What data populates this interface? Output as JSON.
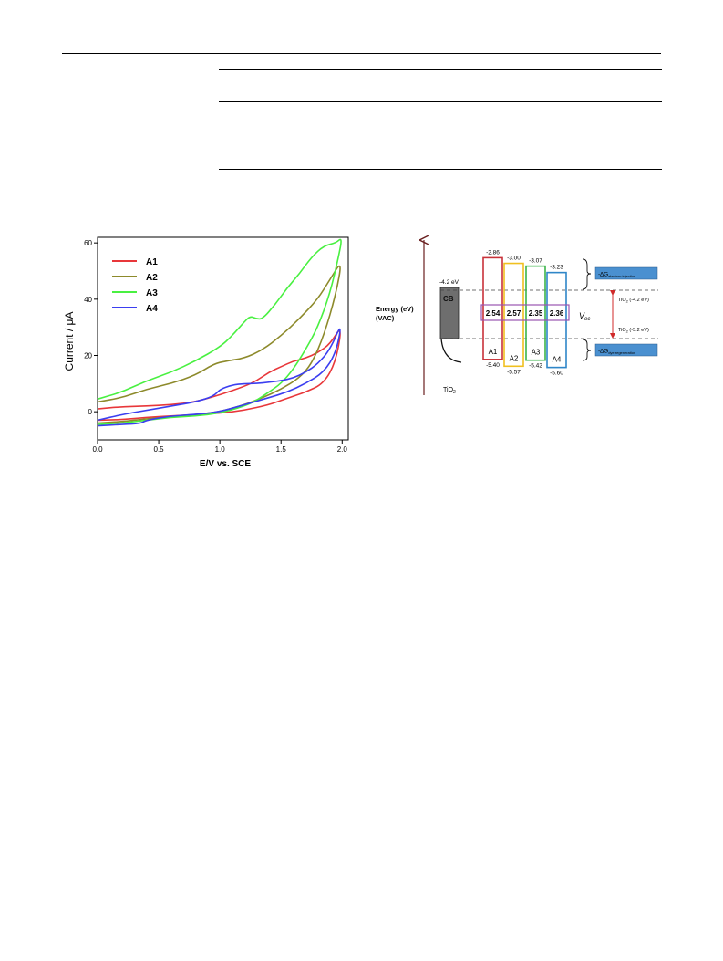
{
  "cv_plot": {
    "xlabel": "E/V vs. SCE",
    "ylabel": "Current / μA",
    "xticks": [
      "0.0",
      "0.5",
      "1.0",
      "1.5",
      "2.0"
    ],
    "yticks": [
      "0",
      "20",
      "40",
      "60"
    ],
    "legend": [
      "A1",
      "A2",
      "A3",
      "A4"
    ]
  },
  "chart_data": {
    "type": "line",
    "xlabel": "E/V vs. SCE",
    "ylabel": "Current / μA",
    "xlim": [
      0.0,
      2.05
    ],
    "ylim": [
      -10,
      62
    ],
    "legend_position": "top-left",
    "grid": false,
    "series": [
      {
        "name": "A1",
        "color": "#e8373a",
        "x": [
          0.0,
          0.2,
          0.4,
          0.6,
          0.8,
          1.0,
          1.2,
          1.3,
          1.4,
          1.5,
          1.6,
          1.7,
          1.8,
          1.9,
          2.0,
          1.95,
          1.85,
          1.7,
          1.6,
          1.5,
          1.4,
          1.2,
          1.0,
          0.8,
          0.6,
          0.4,
          0.2,
          0.0
        ],
        "y": [
          1,
          1.8,
          2,
          2.5,
          3.5,
          6,
          9,
          11,
          14,
          16,
          18,
          19,
          21,
          24,
          31,
          18,
          10,
          7,
          5.5,
          4,
          2.5,
          0.5,
          -0.5,
          -1,
          -1.5,
          -2,
          -2.8,
          -3
        ]
      },
      {
        "name": "A2",
        "color": "#8d8a2b",
        "x": [
          0.0,
          0.2,
          0.4,
          0.6,
          0.8,
          0.95,
          1.05,
          1.2,
          1.35,
          1.5,
          1.65,
          1.8,
          1.9,
          2.0,
          1.95,
          1.85,
          1.75,
          1.65,
          1.5,
          1.35,
          1.2,
          1.0,
          0.8,
          0.6,
          0.4,
          0.2,
          0.0
        ],
        "y": [
          3.5,
          5,
          8,
          10,
          13,
          17,
          18,
          19,
          22,
          27,
          33,
          40,
          47,
          54,
          42,
          27,
          17,
          12,
          8,
          5,
          2.5,
          0,
          -1,
          -1.8,
          -2.5,
          -3.5,
          -4
        ]
      },
      {
        "name": "A3",
        "color": "#49f041",
        "x": [
          0.0,
          0.2,
          0.4,
          0.6,
          0.8,
          1.0,
          1.1,
          1.2,
          1.25,
          1.3,
          1.35,
          1.45,
          1.55,
          1.65,
          1.75,
          1.85,
          1.95,
          2.0,
          1.97,
          1.9,
          1.8,
          1.7,
          1.6,
          1.5,
          1.4,
          1.3,
          1.2,
          1.0,
          0.8,
          0.6,
          0.4,
          0.2,
          0.0
        ],
        "y": [
          4.5,
          7,
          11,
          14,
          18,
          23,
          27,
          32,
          34,
          33,
          33,
          38,
          44,
          49,
          55,
          59,
          60,
          62,
          55,
          42,
          30,
          22,
          15,
          10,
          7,
          4,
          2,
          -0.5,
          -1.5,
          -2,
          -3,
          -4,
          -4.5
        ]
      },
      {
        "name": "A4",
        "color": "#3b3ef0",
        "x": [
          0.0,
          0.2,
          0.4,
          0.6,
          0.8,
          0.95,
          1.0,
          1.1,
          1.2,
          1.3,
          1.4,
          1.5,
          1.6,
          1.7,
          1.8,
          1.9,
          2.0,
          1.95,
          1.85,
          1.7,
          1.55,
          1.4,
          1.2,
          1.0,
          0.8,
          0.6,
          0.4,
          0.35,
          0.2,
          0.0
        ],
        "y": [
          -3,
          -1,
          0.5,
          2,
          3.5,
          5.5,
          8,
          9.5,
          10,
          10,
          10.5,
          11,
          12,
          14,
          17,
          22,
          32,
          21,
          14,
          10,
          7,
          5,
          2.5,
          0,
          -1,
          -1.5,
          -3,
          -4.2,
          -4.5,
          -5
        ]
      }
    ]
  },
  "energy_diagram": {
    "axis_label_line1": "Energy (eV)",
    "axis_label_line2": "(VAC)",
    "tio2_cb_value": "-4.2 eV",
    "cb_label": "CB",
    "tio2_label_main": "TiO",
    "tio2_label_sub": "2",
    "voc_label": "V",
    "voc_sub": "oc",
    "tio2_upper_main": "TiO",
    "tio2_upper_sub": "2",
    "tio2_upper_rest": " (-4.2 eV)",
    "tio2_lower_main": "TiO",
    "tio2_lower_sub": "2",
    "tio2_lower_rest": " (-5.2 eV)",
    "injection_box_main": "-∆G",
    "injection_box_sub": "electron injection",
    "regeneration_box_main": "-∆G",
    "regeneration_box_sub": "dye regeneration",
    "dyes": [
      {
        "name": "A1",
        "lumo": "-2.86",
        "homo": "-5.40",
        "gap": "2.54",
        "color": "#c8323a"
      },
      {
        "name": "A2",
        "lumo": "-3.00",
        "homo": "-5.57",
        "gap": "2.57",
        "color": "#f0c020"
      },
      {
        "name": "A3",
        "lumo": "-3.07",
        "homo": "-5.42",
        "gap": "2.35",
        "color": "#3cb44a"
      },
      {
        "name": "A4",
        "lumo": "-3.23",
        "homo": "-5.60",
        "gap": "2.36",
        "color": "#2f86c8"
      }
    ],
    "box_color": "#4a90d0",
    "arrow_color": "#d02a2a",
    "gap_frame_color": "#9a55b0"
  }
}
